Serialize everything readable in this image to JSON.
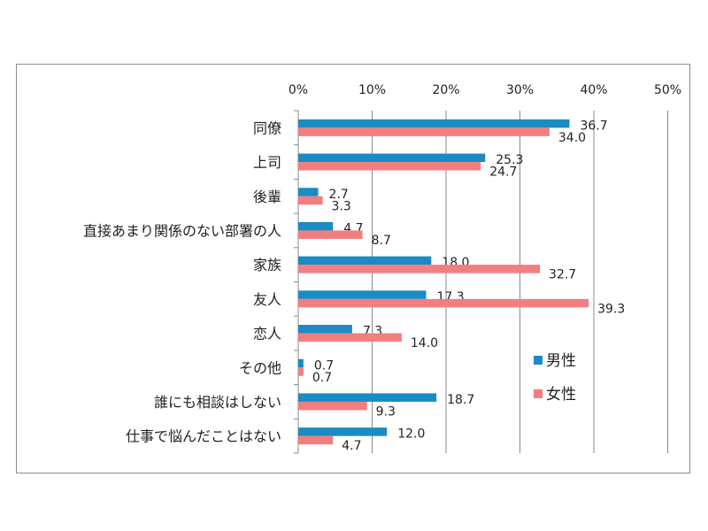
{
  "chart_data": {
    "type": "bar",
    "orientation": "horizontal",
    "categories": [
      "同僚",
      "上司",
      "後輩",
      "直接あまり関係のない部署の人",
      "家族",
      "友人",
      "恋人",
      "その他",
      "誰にも相談はしない",
      "仕事で悩んだことはない"
    ],
    "series": [
      {
        "name": "男性",
        "color": "#1b8bc3",
        "values": [
          36.7,
          25.3,
          2.7,
          4.7,
          18.0,
          17.3,
          7.3,
          0.7,
          18.7,
          12.0
        ]
      },
      {
        "name": "女性",
        "color": "#f27e80",
        "values": [
          34.0,
          24.7,
          3.3,
          8.7,
          32.7,
          39.3,
          14.0,
          0.7,
          9.3,
          4.7
        ]
      }
    ],
    "xlim": [
      0,
      50
    ],
    "xticks": [
      "0%",
      "10%",
      "20%",
      "30%",
      "40%",
      "50%"
    ],
    "xaxis_position": "top",
    "grid": true,
    "legend": "right"
  }
}
